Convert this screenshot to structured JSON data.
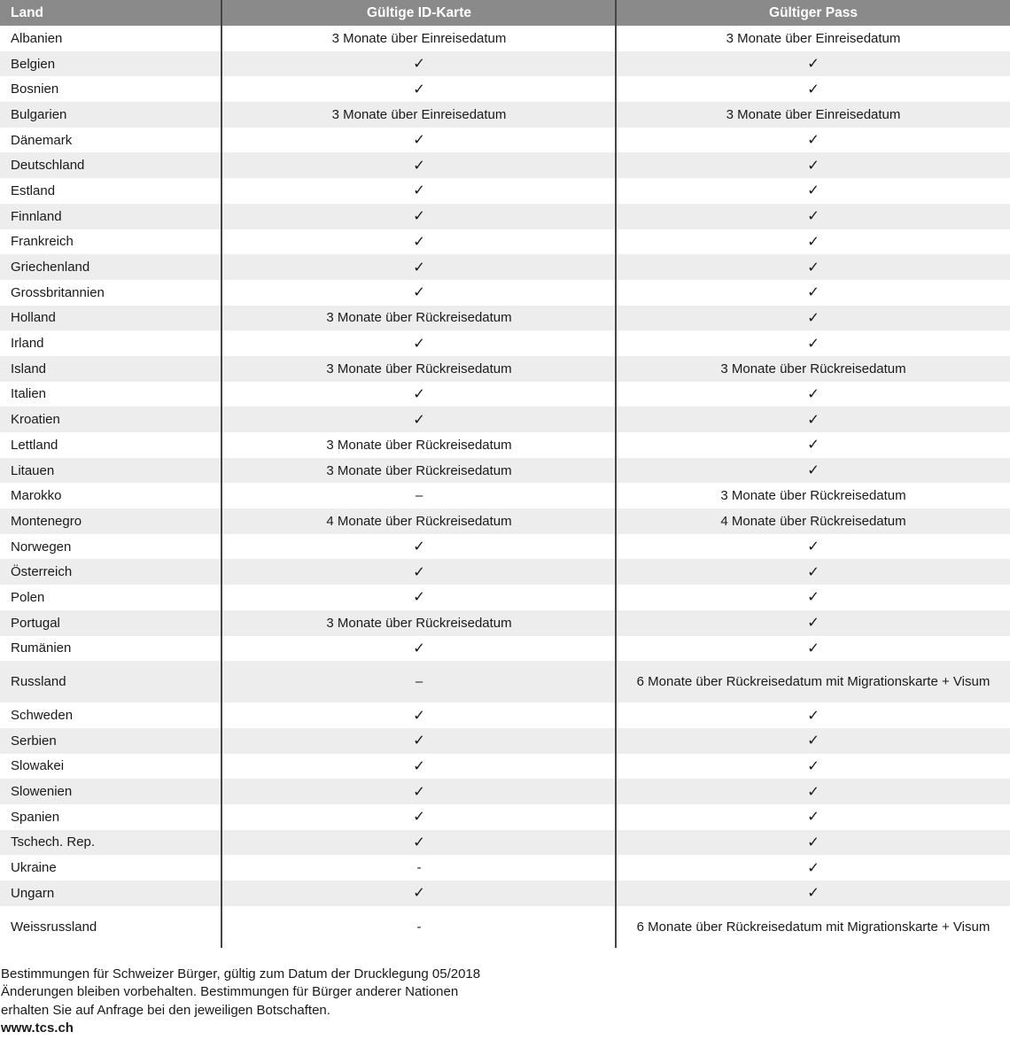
{
  "table": {
    "headers": {
      "country": "Land",
      "id_card": "Gültige ID-Karte",
      "pass": "Gültiger Pass"
    },
    "rows": [
      {
        "country": "Albanien",
        "id_card": "3 Monate über Einreisedatum",
        "pass": "3 Monate über Einreisedatum"
      },
      {
        "country": "Belgien",
        "id_card": "✓",
        "pass": "✓"
      },
      {
        "country": "Bosnien",
        "id_card": "✓",
        "pass": "✓"
      },
      {
        "country": "Bulgarien",
        "id_card": "3 Monate über Einreisedatum",
        "pass": "3 Monate über Einreisedatum"
      },
      {
        "country": "Dänemark",
        "id_card": "✓",
        "pass": "✓"
      },
      {
        "country": "Deutschland",
        "id_card": "✓",
        "pass": "✓"
      },
      {
        "country": "Estland",
        "id_card": "✓",
        "pass": "✓"
      },
      {
        "country": "Finnland",
        "id_card": "✓",
        "pass": "✓"
      },
      {
        "country": "Frankreich",
        "id_card": "✓",
        "pass": "✓"
      },
      {
        "country": "Griechenland",
        "id_card": "✓",
        "pass": "✓"
      },
      {
        "country": "Grossbritannien",
        "id_card": "✓",
        "pass": "✓"
      },
      {
        "country": "Holland",
        "id_card": "3 Monate über Rückreisedatum",
        "pass": "✓"
      },
      {
        "country": "Irland",
        "id_card": "✓",
        "pass": "✓"
      },
      {
        "country": "Island",
        "id_card": "3 Monate über Rückreisedatum",
        "pass": "3 Monate über Rückreisedatum"
      },
      {
        "country": "Italien",
        "id_card": "✓",
        "pass": "✓"
      },
      {
        "country": "Kroatien",
        "id_card": "✓",
        "pass": "✓"
      },
      {
        "country": "Lettland",
        "id_card": "3 Monate über Rückreisedatum",
        "pass": "✓"
      },
      {
        "country": "Litauen",
        "id_card": "3 Monate über Rückreisedatum",
        "pass": "✓"
      },
      {
        "country": "Marokko",
        "id_card": "–",
        "pass": "3 Monate über Rückreisedatum"
      },
      {
        "country": "Montenegro",
        "id_card": "4 Monate über Rückreisedatum",
        "pass": "4 Monate über Rückreisedatum"
      },
      {
        "country": "Norwegen",
        "id_card": "✓",
        "pass": "✓"
      },
      {
        "country": "Österreich",
        "id_card": "✓",
        "pass": "✓"
      },
      {
        "country": "Polen",
        "id_card": "✓",
        "pass": "✓"
      },
      {
        "country": "Portugal",
        "id_card": "3 Monate über Rückreisedatum",
        "pass": "✓"
      },
      {
        "country": "Rumänien",
        "id_card": "✓",
        "pass": "✓"
      },
      {
        "country": "Russland",
        "id_card": "–",
        "pass": "6 Monate über Rückreisedatum mit Migrationskarte + Visum",
        "tall": true
      },
      {
        "country": "Schweden",
        "id_card": "✓",
        "pass": "✓"
      },
      {
        "country": "Serbien",
        "id_card": "✓",
        "pass": "✓"
      },
      {
        "country": "Slowakei",
        "id_card": "✓",
        "pass": "✓"
      },
      {
        "country": "Slowenien",
        "id_card": "✓",
        "pass": "✓"
      },
      {
        "country": "Spanien",
        "id_card": "✓",
        "pass": "✓"
      },
      {
        "country": "Tschech. Rep.",
        "id_card": "✓",
        "pass": "✓"
      },
      {
        "country": "Ukraine",
        "id_card": "-",
        "pass": "✓"
      },
      {
        "country": "Ungarn",
        "id_card": "✓",
        "pass": "✓"
      },
      {
        "country": "Weissrussland",
        "id_card": "-",
        "pass": "6 Monate über Rückreisedatum mit Migrationskarte + Visum",
        "tall": true
      }
    ]
  },
  "footer": {
    "lines": [
      "Bestimmungen für Schweizer Bürger, gültig zum Datum der Drucklegung 05/2018",
      "Änderungen bleiben vorbehalten. Bestimmungen für Bürger anderer Nationen",
      "erhalten Sie auf Anfrage bei den jeweiligen Botschaften."
    ],
    "website": "www.tcs.ch"
  },
  "colors": {
    "header_bg": "#8a8a8a",
    "header_text": "#ffffff",
    "stripe": "#ededed",
    "divider": "#454545",
    "text": "#1a1a1a"
  }
}
